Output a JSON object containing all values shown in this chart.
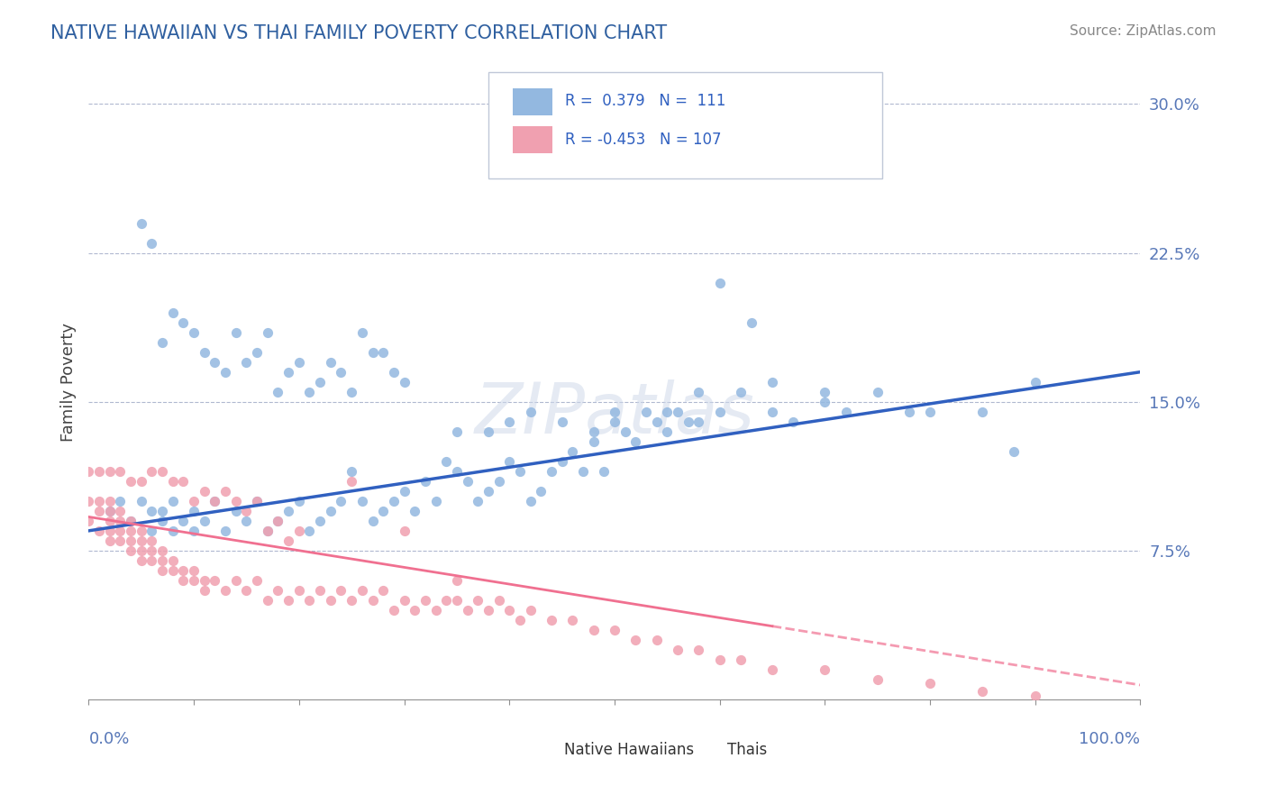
{
  "title": "NATIVE HAWAIIAN VS THAI FAMILY POVERTY CORRELATION CHART",
  "source_text": "Source: ZipAtlas.com",
  "ylabel": "Family Poverty",
  "yticks": [
    0.0,
    0.075,
    0.15,
    0.225,
    0.3
  ],
  "ytick_labels": [
    "",
    "7.5%",
    "15.0%",
    "22.5%",
    "30.0%"
  ],
  "xlim": [
    0.0,
    1.0
  ],
  "ylim": [
    0.0,
    0.32
  ],
  "color_blue": "#93b8e0",
  "color_pink": "#f0a0b0",
  "line_blue": "#3060c0",
  "line_pink": "#f07090",
  "blue_line_x": [
    0.0,
    1.0
  ],
  "blue_line_y": [
    0.085,
    0.165
  ],
  "pink_line_x": [
    0.0,
    0.85
  ],
  "pink_line_y": [
    0.092,
    0.02
  ],
  "blue_dots_x": [
    0.02,
    0.03,
    0.04,
    0.05,
    0.06,
    0.06,
    0.07,
    0.07,
    0.08,
    0.08,
    0.09,
    0.1,
    0.1,
    0.11,
    0.12,
    0.13,
    0.14,
    0.15,
    0.16,
    0.17,
    0.18,
    0.19,
    0.2,
    0.21,
    0.22,
    0.23,
    0.24,
    0.25,
    0.26,
    0.27,
    0.28,
    0.29,
    0.3,
    0.31,
    0.32,
    0.33,
    0.34,
    0.35,
    0.36,
    0.37,
    0.38,
    0.39,
    0.4,
    0.41,
    0.42,
    0.43,
    0.44,
    0.45,
    0.46,
    0.47,
    0.48,
    0.49,
    0.5,
    0.51,
    0.52,
    0.53,
    0.54,
    0.55,
    0.56,
    0.57,
    0.58,
    0.6,
    0.62,
    0.63,
    0.65,
    0.67,
    0.7,
    0.72,
    0.75,
    0.78,
    0.8,
    0.85,
    0.88,
    0.9,
    0.05,
    0.06,
    0.07,
    0.08,
    0.09,
    0.1,
    0.11,
    0.12,
    0.13,
    0.14,
    0.15,
    0.16,
    0.17,
    0.18,
    0.19,
    0.2,
    0.21,
    0.22,
    0.23,
    0.24,
    0.25,
    0.26,
    0.27,
    0.28,
    0.29,
    0.3,
    0.35,
    0.38,
    0.4,
    0.42,
    0.45,
    0.48,
    0.5,
    0.55,
    0.58,
    0.6,
    0.65,
    0.7
  ],
  "blue_dots_y": [
    0.095,
    0.1,
    0.09,
    0.1,
    0.095,
    0.085,
    0.09,
    0.095,
    0.085,
    0.1,
    0.09,
    0.085,
    0.095,
    0.09,
    0.1,
    0.085,
    0.095,
    0.09,
    0.1,
    0.085,
    0.09,
    0.095,
    0.1,
    0.085,
    0.09,
    0.095,
    0.1,
    0.115,
    0.1,
    0.09,
    0.095,
    0.1,
    0.105,
    0.095,
    0.11,
    0.1,
    0.12,
    0.115,
    0.11,
    0.1,
    0.105,
    0.11,
    0.12,
    0.115,
    0.1,
    0.105,
    0.115,
    0.12,
    0.125,
    0.115,
    0.13,
    0.115,
    0.14,
    0.135,
    0.13,
    0.145,
    0.14,
    0.135,
    0.145,
    0.14,
    0.155,
    0.21,
    0.155,
    0.19,
    0.145,
    0.14,
    0.15,
    0.145,
    0.155,
    0.145,
    0.145,
    0.145,
    0.125,
    0.16,
    0.24,
    0.23,
    0.18,
    0.195,
    0.19,
    0.185,
    0.175,
    0.17,
    0.165,
    0.185,
    0.17,
    0.175,
    0.185,
    0.155,
    0.165,
    0.17,
    0.155,
    0.16,
    0.17,
    0.165,
    0.155,
    0.185,
    0.175,
    0.175,
    0.165,
    0.16,
    0.135,
    0.135,
    0.14,
    0.145,
    0.14,
    0.135,
    0.145,
    0.145,
    0.14,
    0.145,
    0.16,
    0.155
  ],
  "pink_dots_x": [
    0.0,
    0.0,
    0.01,
    0.01,
    0.01,
    0.02,
    0.02,
    0.02,
    0.02,
    0.02,
    0.03,
    0.03,
    0.03,
    0.03,
    0.04,
    0.04,
    0.04,
    0.04,
    0.05,
    0.05,
    0.05,
    0.05,
    0.06,
    0.06,
    0.06,
    0.07,
    0.07,
    0.07,
    0.08,
    0.08,
    0.09,
    0.09,
    0.1,
    0.1,
    0.11,
    0.11,
    0.12,
    0.13,
    0.14,
    0.15,
    0.16,
    0.17,
    0.18,
    0.19,
    0.2,
    0.21,
    0.22,
    0.23,
    0.24,
    0.25,
    0.26,
    0.27,
    0.28,
    0.29,
    0.3,
    0.31,
    0.32,
    0.33,
    0.34,
    0.35,
    0.36,
    0.37,
    0.38,
    0.39,
    0.4,
    0.41,
    0.42,
    0.44,
    0.46,
    0.48,
    0.5,
    0.52,
    0.54,
    0.56,
    0.58,
    0.6,
    0.62,
    0.65,
    0.7,
    0.75,
    0.8,
    0.85,
    0.9,
    0.0,
    0.01,
    0.02,
    0.03,
    0.04,
    0.05,
    0.06,
    0.07,
    0.08,
    0.09,
    0.1,
    0.11,
    0.12,
    0.13,
    0.14,
    0.15,
    0.16,
    0.17,
    0.18,
    0.19,
    0.2,
    0.25,
    0.3,
    0.35
  ],
  "pink_dots_y": [
    0.1,
    0.09,
    0.1,
    0.095,
    0.085,
    0.09,
    0.1,
    0.085,
    0.095,
    0.08,
    0.09,
    0.085,
    0.095,
    0.08,
    0.085,
    0.09,
    0.08,
    0.075,
    0.085,
    0.08,
    0.075,
    0.07,
    0.08,
    0.075,
    0.07,
    0.075,
    0.07,
    0.065,
    0.07,
    0.065,
    0.065,
    0.06,
    0.065,
    0.06,
    0.06,
    0.055,
    0.06,
    0.055,
    0.06,
    0.055,
    0.06,
    0.05,
    0.055,
    0.05,
    0.055,
    0.05,
    0.055,
    0.05,
    0.055,
    0.05,
    0.055,
    0.05,
    0.055,
    0.045,
    0.05,
    0.045,
    0.05,
    0.045,
    0.05,
    0.05,
    0.045,
    0.05,
    0.045,
    0.05,
    0.045,
    0.04,
    0.045,
    0.04,
    0.04,
    0.035,
    0.035,
    0.03,
    0.03,
    0.025,
    0.025,
    0.02,
    0.02,
    0.015,
    0.015,
    0.01,
    0.008,
    0.004,
    0.002,
    0.115,
    0.115,
    0.115,
    0.115,
    0.11,
    0.11,
    0.115,
    0.115,
    0.11,
    0.11,
    0.1,
    0.105,
    0.1,
    0.105,
    0.1,
    0.095,
    0.1,
    0.085,
    0.09,
    0.08,
    0.085,
    0.11,
    0.085,
    0.06
  ]
}
